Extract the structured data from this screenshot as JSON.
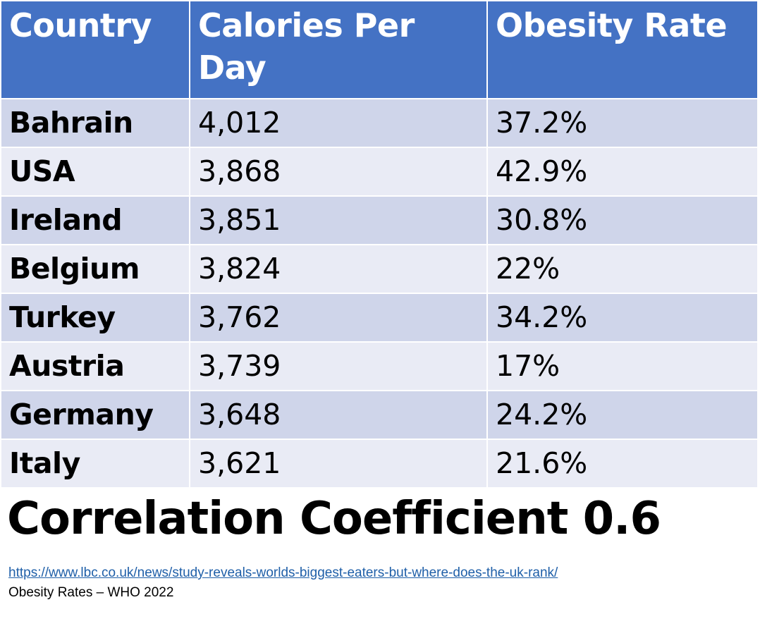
{
  "table": {
    "headers": [
      "Country",
      "Calories Per Day",
      "Obesity Rate"
    ],
    "rows": [
      {
        "country": "Bahrain",
        "calories": "4,012",
        "obesity": "37.2%"
      },
      {
        "country": "USA",
        "calories": "3,868",
        "obesity": "42.9%"
      },
      {
        "country": "Ireland",
        "calories": "3,851",
        "obesity": "30.8%"
      },
      {
        "country": "Belgium",
        "calories": "3,824",
        "obesity": "22%"
      },
      {
        "country": "Turkey",
        "calories": "3,762",
        "obesity": "34.2%"
      },
      {
        "country": "Austria",
        "calories": "3,739",
        "obesity": "17%"
      },
      {
        "country": "Germany",
        "calories": "3,648",
        "obesity": "24.2%"
      },
      {
        "country": "Italy",
        "calories": "3,621",
        "obesity": "21.6%"
      }
    ]
  },
  "summary": {
    "correlation_text": "Correlation Coefficient 0.6"
  },
  "sources": {
    "link_text": "https://www.lbc.co.uk/news/study-reveals-worlds-biggest-eaters-but-where-does-the-uk-rank/",
    "note": "Obesity Rates – WHO 2022"
  },
  "colors": {
    "header_bg": "#4472C4",
    "row_odd_bg": "#CFD5EA",
    "row_even_bg": "#E9EBF5",
    "link": "#1F5FA8"
  }
}
